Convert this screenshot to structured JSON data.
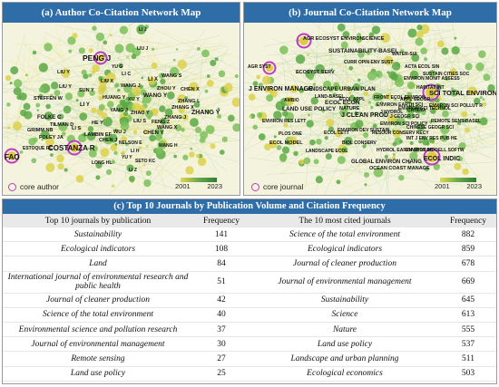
{
  "panel_a": {
    "title": "(a) Author Co-Citation Network Map",
    "labels": [
      "PENG J",
      "COSTANZA R",
      "FAO",
      "LIU Y",
      "LIU Y",
      "LI Y",
      "CHEN Y",
      "WANG Y",
      "ZHANG Y",
      "LI X",
      "WANG J",
      "ZHANG L",
      "LI J",
      "LIU J",
      "STEFFEN W",
      "FOLKE C",
      "YANG J",
      "SUN Y",
      "LI C",
      "ZHOU Y",
      "CHEN J",
      "WU J",
      "HE Y",
      "LIU X",
      "ZHAO Y",
      "CHEN X",
      "YU Y",
      "LI H",
      "WANG X",
      "LONG HL",
      "LAMBIN EF",
      "ZHANG J",
      "FENG Z",
      "LIU S",
      "ZHANG X",
      "HUANG Y",
      "LI S",
      "WANG S",
      "GRIMM NB",
      "WANG H",
      "TILMAN D",
      "FOLEY JA",
      "NELSON E",
      "ESTOQUE RC",
      "LI Z",
      "YU G",
      "XU Y",
      "SETO KC"
    ],
    "legend_core": "core author",
    "scale_start": "2001",
    "scale_end": "2023"
  },
  "panel_b": {
    "title": "(b) Journal Co-Citation Network Map",
    "labels": [
      "SCI TOTAL ENVIRON",
      "ECOL INDIC",
      "J ENVIRON MANAGE",
      "J CLEAN PROD",
      "LAND USE POLICY",
      "AGR ECOSYST ENVIRON",
      "SCIENCE",
      "SUSTAINABILITY-BASEL",
      "WATER-SUI",
      "NATURE",
      "ECOL ECON",
      "LANDSCAPE URBAN PLAN",
      "ECOL MODEL",
      "ENVIRON SCI POLLUT R",
      "REMOTE SENS-BASEL",
      "GLOBAL ENVIRON CHANG",
      "CURR OPIN ENV SUST",
      "ECOSYST SERV",
      "ENVIRON RES LETT",
      "ACTA ECOL SIN",
      "AMBIO",
      "LAND-BASEL",
      "PLOS ONE",
      "OCEAN COAST MANAGE",
      "ENVIRON MONIT ASSESS",
      "SUSTAIN CITIES SOC",
      "HABITAT INT",
      "J GEOGR SCI",
      "CATENA",
      "BIOL CONSERV",
      "APPL GEOGR",
      "ECOL APPL",
      "RESOUR CONSERV RECY",
      "HYDROL EARTH SYST SC",
      "ENVIRON SCI TECHNOL",
      "INT J ENV RES PUB HE",
      "ENVIRON MODELL SOFTW",
      "LANDSCAPE ECOL",
      "ENVIRON SCI POLICY",
      "FRONT ECOL ENVIRON",
      "CHINESE GEOGR SCI",
      "J HYDROL",
      "AGR SYST",
      "ENVIRON EARTH SCI",
      "ENVIRON DEV SUSTAIN",
      "ECOL LETT"
    ],
    "legend_core": "core journal",
    "scale_start": "2001",
    "scale_end": "2023"
  },
  "section_c": {
    "title": "(c) Top 10 Journals by Publication Volume and Citation Frequency",
    "headers": [
      "Top 10 journals by publication",
      "Frequency",
      "The 10 most cited journals",
      "Frequency"
    ],
    "rows": [
      [
        "Sustainability",
        "141",
        "Science of the total environment",
        "882"
      ],
      [
        "Ecological indicators",
        "108",
        "Ecological indicators",
        "859"
      ],
      [
        "Land",
        "84",
        "Journal of cleaner production",
        "678"
      ],
      [
        "International journal of environmental research and public health",
        "51",
        "Journal of environmental management",
        "669"
      ],
      [
        "Journal of cleaner production",
        "42",
        "Sustainability",
        "645"
      ],
      [
        "Science of the total environment",
        "40",
        "Science",
        "613"
      ],
      [
        "Environmental science and pollution research",
        "37",
        "Nature",
        "555"
      ],
      [
        "Journal of environmental management",
        "30",
        "Land use policy",
        "537"
      ],
      [
        "Remote sensing",
        "27",
        "Landscape and urban planning",
        "511"
      ],
      [
        "Land use policy",
        "25",
        "Ecological economics",
        "503"
      ]
    ]
  },
  "colors": {
    "title_bar": "#2f6da8",
    "core_ring": "#c03bbf",
    "node_green": "#6aa84f",
    "node_yellow": "#e3d94a"
  }
}
